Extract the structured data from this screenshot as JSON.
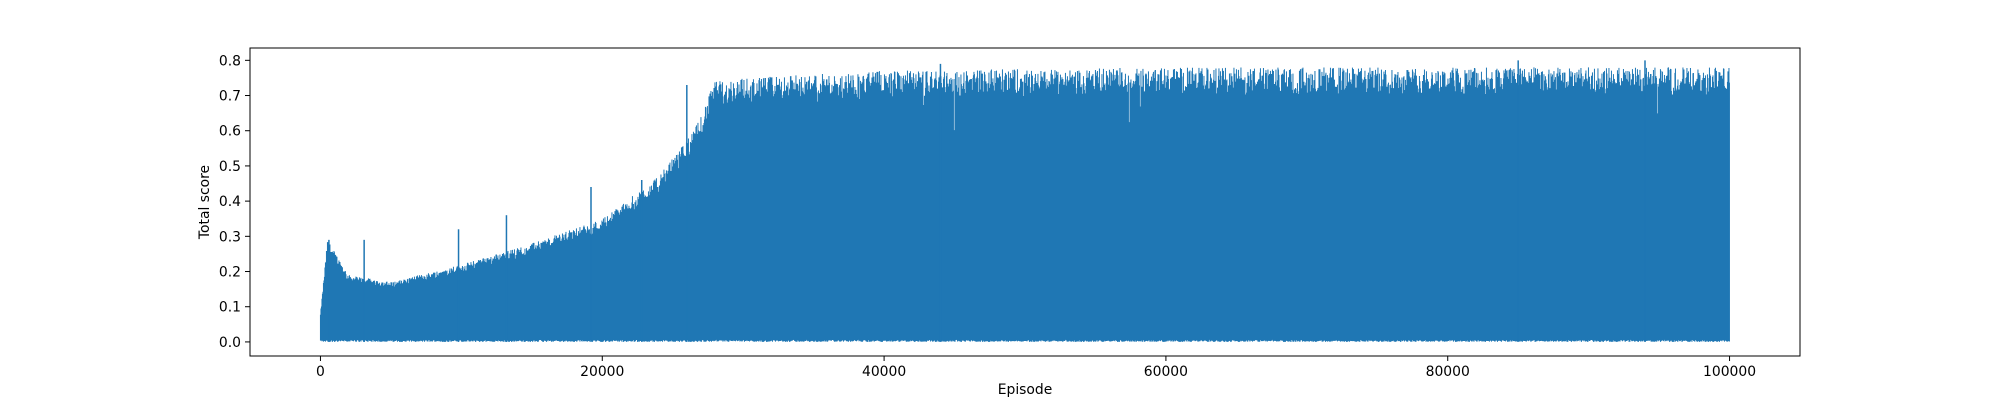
{
  "chart_data": {
    "type": "line",
    "title": "",
    "xlabel": "Episode",
    "ylabel": "Total score",
    "xlim": [
      -5000,
      105000
    ],
    "ylim": [
      -0.04,
      0.835
    ],
    "x_ticks": [
      0,
      20000,
      40000,
      60000,
      80000,
      100000
    ],
    "x_tick_labels": [
      "0",
      "20000",
      "40000",
      "60000",
      "80000",
      "100000"
    ],
    "y_ticks": [
      0.0,
      0.1,
      0.2,
      0.3,
      0.4,
      0.5,
      0.6,
      0.7,
      0.8
    ],
    "y_tick_labels": [
      "0.0",
      "0.1",
      "0.2",
      "0.3",
      "0.4",
      "0.5",
      "0.6",
      "0.7",
      "0.8"
    ],
    "grid": false,
    "legend": false,
    "series": [
      {
        "color": "#1f77b4",
        "x_range": [
          0,
          100000
        ],
        "lower_values": [
          0.0,
          0.0,
          0.0,
          0.0,
          0.0,
          0.0,
          0.0,
          0.0,
          0.0,
          0.0,
          0.0,
          0.0,
          0.0
        ],
        "envelope_x": [
          0,
          500,
          2000,
          5000,
          10000,
          15000,
          20000,
          24000,
          26500,
          28000,
          30000,
          40000,
          60000,
          80000,
          100000
        ],
        "envelope_upper": [
          0.08,
          0.29,
          0.19,
          0.17,
          0.22,
          0.28,
          0.35,
          0.47,
          0.6,
          0.74,
          0.75,
          0.77,
          0.78,
          0.78,
          0.78
        ],
        "peaks": [
          {
            "x": 600,
            "y": 0.29
          },
          {
            "x": 3100,
            "y": 0.29
          },
          {
            "x": 9800,
            "y": 0.32
          },
          {
            "x": 13200,
            "y": 0.36
          },
          {
            "x": 19200,
            "y": 0.44
          },
          {
            "x": 22800,
            "y": 0.46
          },
          {
            "x": 26000,
            "y": 0.73
          },
          {
            "x": 44000,
            "y": 0.79
          },
          {
            "x": 85000,
            "y": 0.8
          },
          {
            "x": 94000,
            "y": 0.8
          }
        ]
      }
    ]
  }
}
